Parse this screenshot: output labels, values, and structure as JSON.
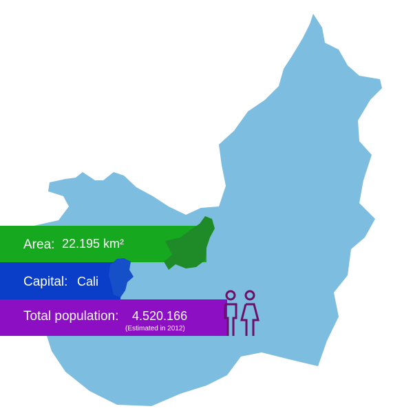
{
  "area": {
    "label": "Area:",
    "value": "22.195 km²"
  },
  "capital": {
    "label": "Capital:",
    "value": "Cali"
  },
  "population": {
    "label": "Total population:",
    "value": "4.520.166",
    "note": "(Estimated in 2012)"
  }
}
